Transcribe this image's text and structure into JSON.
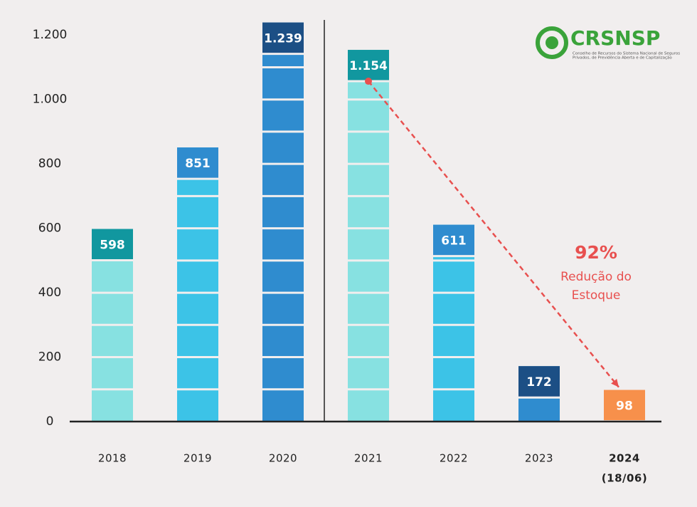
{
  "chart_data": {
    "type": "bar",
    "categories": [
      "2018",
      "2019",
      "2020",
      "2021",
      "2022",
      "2023",
      "2024"
    ],
    "category_note": "(18/06)",
    "values": [
      598,
      851,
      1239,
      1154,
      611,
      172,
      98
    ],
    "value_labels": [
      "598",
      "851",
      "1.239",
      "1.154",
      "611",
      "172",
      "98"
    ],
    "colors": [
      "#87e1e1",
      "#3cc3e7",
      "#2f8ccf",
      "#87e1e1",
      "#3cc3e7",
      "#2f8ccf",
      "#f7904b"
    ],
    "label_colors": [
      "#11979f",
      "#2f8ccf",
      "#1c4f85",
      "#11979f",
      "#2f8ccf",
      "#1c4f85",
      "#f7904b"
    ],
    "ylim": [
      0,
      1300
    ],
    "yticks": [
      0,
      200,
      400,
      600,
      800,
      {
        "value": 1000,
        "label": "1.000"
      },
      {
        "value": 1200,
        "label": "1.200"
      }
    ],
    "annotation": {
      "value": "92%",
      "lines": [
        "Redução do",
        "Estoque"
      ],
      "color": "#e8504f"
    },
    "logo": {
      "name": "CRSNSP",
      "subtitle": [
        "Conselho de Recursos do Sistema Nacional de Seguros",
        "Privados, de Previdência Aberta e de Capitalização"
      ],
      "color": "#3aa33a"
    }
  }
}
